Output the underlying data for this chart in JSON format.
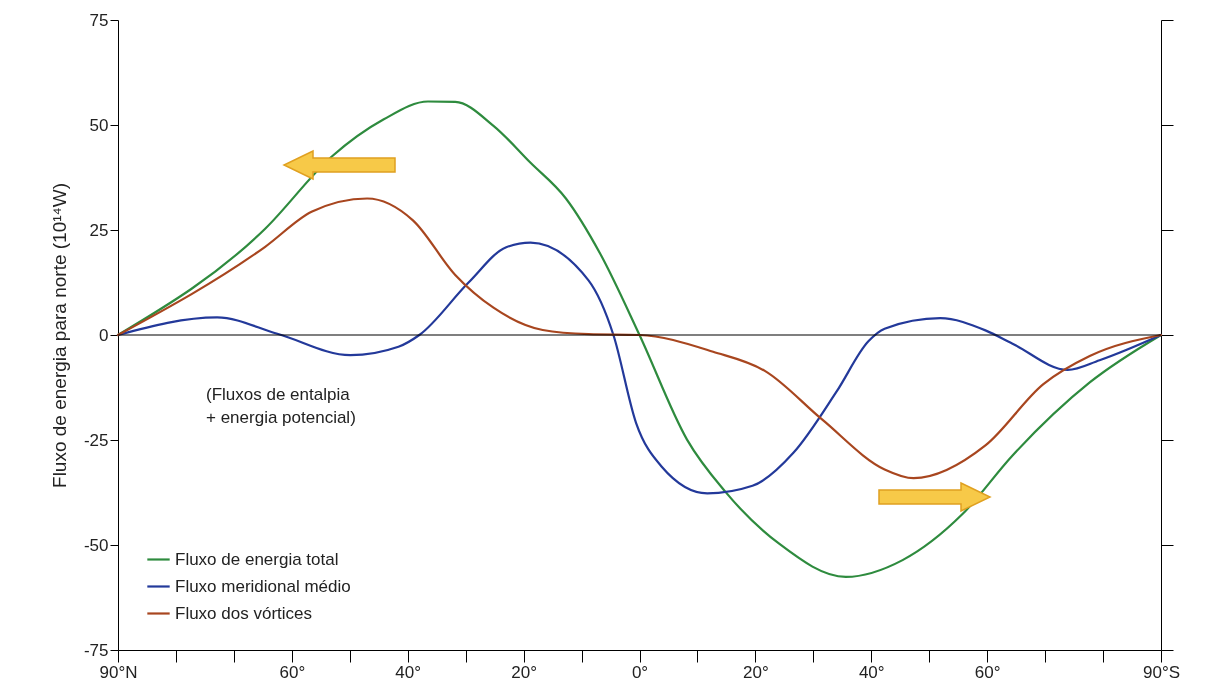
{
  "chart_data": {
    "type": "line",
    "ylabel": "Fluxo de energia para norte (10¹⁴W)",
    "xlim": [
      90,
      -90
    ],
    "xticks": [
      {
        "value": 90,
        "label": "90°N"
      },
      {
        "value": 80,
        "label": null
      },
      {
        "value": 70,
        "label": null
      },
      {
        "value": 60,
        "label": "60°"
      },
      {
        "value": 50,
        "label": null
      },
      {
        "value": 40,
        "label": "40°"
      },
      {
        "value": 30,
        "label": null
      },
      {
        "value": 20,
        "label": "20°"
      },
      {
        "value": 10,
        "label": null
      },
      {
        "value": 0,
        "label": "0°"
      },
      {
        "value": -10,
        "label": null
      },
      {
        "value": -20,
        "label": "20°"
      },
      {
        "value": -30,
        "label": null
      },
      {
        "value": -40,
        "label": "40°"
      },
      {
        "value": -50,
        "label": null
      },
      {
        "value": -60,
        "label": "60°"
      },
      {
        "value": -70,
        "label": null
      },
      {
        "value": -80,
        "label": null
      },
      {
        "value": -90,
        "label": "90°S"
      }
    ],
    "ylim": [
      -75,
      75
    ],
    "yticks": [
      -75,
      -50,
      -25,
      0,
      25,
      50,
      75
    ],
    "series": [
      {
        "name": "Fluxo de energia total",
        "color": "#2e8b3e",
        "x": [
          90,
          64.6,
          53.1,
          44.2,
          36.5,
          31.8,
          25.2,
          18.8,
          12.7,
          6.8,
          0,
          -8.2,
          -14.8,
          -24.1,
          -35.6,
          -45.4,
          -55.7,
          -64.3,
          -77.7,
          -90
        ],
        "values": [
          0,
          25.3,
          42.5,
          51.3,
          55.6,
          55.5,
          49.8,
          41,
          32.5,
          19.4,
          0,
          -24.9,
          -37.3,
          -49.7,
          -57.6,
          -53.6,
          -42.7,
          -28.8,
          -11.3,
          0
        ]
      },
      {
        "name": "Fluxo meridional médio",
        "color": "#23399a",
        "x": [
          90,
          72.9,
          62.5,
          49.9,
          41.6,
          38,
          29.5,
          23,
          18.8,
          8.8,
          4.5,
          0.6,
          -3.8,
          -11.7,
          -19.5,
          -26.6,
          -34,
          -39.5,
          -42.3,
          -51.9,
          -59.7,
          -64.3,
          -73.9,
          -79.4,
          -90
        ],
        "values": [
          0,
          4.2,
          0.3,
          -4.8,
          -2.8,
          0,
          12.5,
          20.9,
          22,
          13,
          0,
          -20.9,
          -31.3,
          -37.7,
          -35.9,
          -28,
          -13.5,
          -1.5,
          1.5,
          4,
          1.1,
          -2,
          -8.3,
          -6,
          0
        ]
      },
      {
        "name": "Fluxo dos vórtices",
        "color": "#a8461f",
        "x": [
          90,
          64.6,
          56.5,
          47,
          39.1,
          31.8,
          25.2,
          16.7,
          8.8,
          0,
          -12.7,
          -21.7,
          -31.5,
          -42.3,
          -47.3,
          -59.7,
          -69.7,
          -77.7,
          -90
        ],
        "values": [
          0,
          21,
          29.4,
          32.5,
          27.3,
          14.3,
          6.5,
          1.2,
          0.2,
          0,
          -4,
          -8.6,
          -20.1,
          -32,
          -34.1,
          -26.3,
          -11.7,
          -5,
          0
        ]
      }
    ],
    "ref_lines": [
      {
        "axis": "y",
        "value": 0,
        "color": "#000000"
      }
    ],
    "annotations": [
      "(Fluxos de entalpia\n+ energia potencial)"
    ],
    "legend": "bottom left",
    "grid": false,
    "marker": "none",
    "line_style": "solid"
  }
}
